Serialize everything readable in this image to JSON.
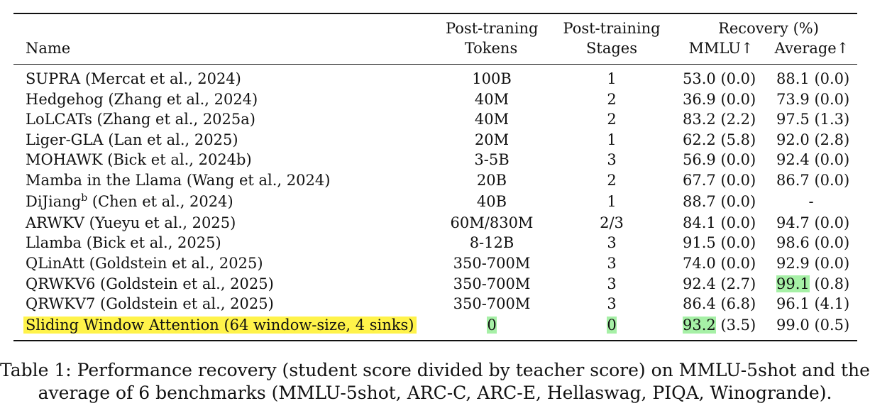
{
  "table": {
    "header": {
      "name": "Name",
      "tokens_line1": "Post-traning",
      "tokens_line2": "Tokens",
      "stages_line1": "Post-training",
      "stages_line2": "Stages",
      "recovery": "Recovery (%)",
      "mmlu": "MMLU↑",
      "average": "Average↑"
    },
    "rows": [
      {
        "name": "SUPRA (Mercat et al., 2024)",
        "tokens": "100B",
        "stages": "1",
        "mmlu": "53.0",
        "mmlu_sd": "(0.0)",
        "avg": "88.1",
        "avg_sd": "(0.0)"
      },
      {
        "name": "Hedgehog (Zhang et al., 2024)",
        "tokens": "40M",
        "stages": "2",
        "mmlu": "36.9",
        "mmlu_sd": "(0.0)",
        "avg": "73.9",
        "avg_sd": "(0.0)"
      },
      {
        "name": "LoLCATs (Zhang et al., 2025a)",
        "tokens": "40M",
        "stages": "2",
        "mmlu": "83.2",
        "mmlu_sd": "(2.2)",
        "avg": "97.5",
        "avg_sd": "(1.3)"
      },
      {
        "name": "Liger-GLA (Lan et al., 2025)",
        "tokens": "20M",
        "stages": "1",
        "mmlu": "62.2",
        "mmlu_sd": "(5.8)",
        "avg": "92.0",
        "avg_sd": "(2.8)"
      },
      {
        "name": "MOHAWK (Bick et al., 2024b)",
        "tokens": "3-5B",
        "stages": "3",
        "mmlu": "56.9",
        "mmlu_sd": "(0.0)",
        "avg": "92.4",
        "avg_sd": "(0.0)"
      },
      {
        "name": "Mamba in the Llama (Wang et al., 2024)",
        "tokens": "20B",
        "stages": "2",
        "mmlu": "67.7",
        "mmlu_sd": "(0.0)",
        "avg": "86.7",
        "avg_sd": "(0.0)"
      },
      {
        "name_main": "DiJiang",
        "name_sup": "b",
        "name_rest": " (Chen et al., 2024)",
        "tokens": "40B",
        "stages": "1",
        "mmlu": "88.7",
        "mmlu_sd": "(0.0)",
        "avg_dash": "-"
      },
      {
        "name": "ARWKV (Yueyu et al., 2025)",
        "tokens": "60M/830M",
        "stages": "2/3",
        "mmlu": "84.1",
        "mmlu_sd": "(0.0)",
        "avg": "94.7",
        "avg_sd": "(0.0)"
      },
      {
        "name": "Llamba (Bick et al., 2025)",
        "tokens": "8-12B",
        "stages": "3",
        "mmlu": "91.5",
        "mmlu_sd": "(0.0)",
        "avg": "98.6",
        "avg_sd": "(0.0)"
      },
      {
        "name": "QLinAtt (Goldstein et al., 2025)",
        "tokens": "350-700M",
        "stages": "3",
        "mmlu": "74.0",
        "mmlu_sd": "(0.0)",
        "avg": "92.9",
        "avg_sd": "(0.0)"
      },
      {
        "name": "QRWKV6 (Goldstein et al., 2025)",
        "tokens": "350-700M",
        "stages": "3",
        "mmlu": "92.4",
        "mmlu_sd": "(2.7)",
        "avg": "99.1",
        "avg_sd": "(0.8)"
      },
      {
        "name": "QRWKV7 (Goldstein et al., 2025)",
        "tokens": "350-700M",
        "stages": "3",
        "mmlu": "86.4",
        "mmlu_sd": "(6.8)",
        "avg": "96.1",
        "avg_sd": "(4.1)"
      },
      {
        "name": "Sliding Window Attention (64 window-size, 4 sinks)",
        "tokens": "0",
        "stages": "0",
        "mmlu": "93.2",
        "mmlu_sd": "(3.5)",
        "avg": "99.0",
        "avg_sd": "(0.5)"
      }
    ],
    "highlight_colors": {
      "yellow": "#fff34a",
      "green": "#a6f0a6"
    }
  },
  "caption": {
    "line1": "Table 1: Performance recovery (student score divided by teacher score) on MMLU-5shot and the",
    "line2": "average of 6 benchmarks (MMLU-5shot, ARC-C, ARC-E, Hellaswag, PIQA, Winogrande)."
  }
}
